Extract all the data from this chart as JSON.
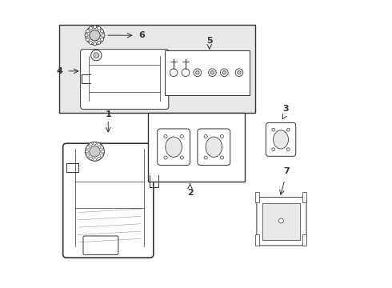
{
  "bg_color": "#ffffff",
  "line_color": "#333333",
  "light_gray": "#cccccc",
  "fill_gray": "#e8e8e8"
}
